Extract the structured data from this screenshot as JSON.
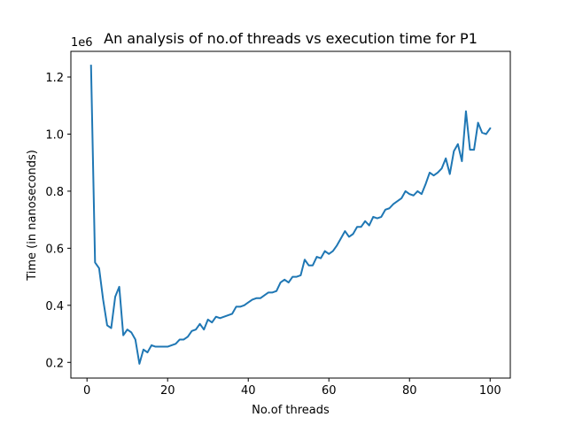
{
  "chart_data": {
    "type": "line",
    "title": "An analysis of no.of threads vs execution time for P1",
    "xlabel": "No.of threads",
    "ylabel": "Time (in nanoseconds)",
    "y_offset_label": "1e6",
    "xlim": [
      -4.0,
      105.0
    ],
    "ylim": [
      0.145,
      1.29
    ],
    "x_ticks": [
      0,
      20,
      40,
      60,
      80,
      100
    ],
    "x_tick_labels": [
      "0",
      "20",
      "40",
      "60",
      "80",
      "100"
    ],
    "y_ticks": [
      0.2,
      0.4,
      0.6,
      0.8,
      1.0,
      1.2
    ],
    "y_tick_labels": [
      "0.2",
      "0.4",
      "0.6",
      "0.8",
      "1.0",
      "1.2"
    ],
    "grid": false,
    "line_color": "#1f77b4",
    "series": [
      {
        "x": [
          1,
          2,
          3,
          4,
          5,
          6,
          7,
          8,
          9,
          10,
          11,
          12,
          13,
          14,
          15,
          16,
          17,
          18,
          19,
          20,
          21,
          22,
          23,
          24,
          25,
          26,
          27,
          28,
          29,
          30,
          31,
          32,
          33,
          34,
          35,
          36,
          37,
          38,
          39,
          40,
          41,
          42,
          43,
          44,
          45,
          46,
          47,
          48,
          49,
          50,
          51,
          52,
          53,
          54,
          55,
          56,
          57,
          58,
          59,
          60,
          61,
          62,
          63,
          64,
          65,
          66,
          67,
          68,
          69,
          70,
          71,
          72,
          73,
          74,
          75,
          76,
          77,
          78,
          79,
          80,
          81,
          82,
          83,
          84,
          85,
          86,
          87,
          88,
          89,
          90,
          91,
          92,
          93,
          94,
          95,
          96,
          97,
          98,
          99,
          100
        ],
        "values": [
          1.24,
          0.55,
          0.53,
          0.42,
          0.33,
          0.32,
          0.43,
          0.465,
          0.295,
          0.315,
          0.305,
          0.28,
          0.195,
          0.245,
          0.235,
          0.26,
          0.255,
          0.255,
          0.255,
          0.255,
          0.26,
          0.265,
          0.28,
          0.28,
          0.29,
          0.31,
          0.315,
          0.335,
          0.315,
          0.35,
          0.34,
          0.36,
          0.355,
          0.36,
          0.365,
          0.37,
          0.395,
          0.395,
          0.4,
          0.41,
          0.42,
          0.425,
          0.425,
          0.435,
          0.445,
          0.445,
          0.45,
          0.48,
          0.49,
          0.48,
          0.5,
          0.5,
          0.505,
          0.56,
          0.54,
          0.54,
          0.57,
          0.565,
          0.59,
          0.58,
          0.59,
          0.61,
          0.635,
          0.66,
          0.64,
          0.65,
          0.675,
          0.675,
          0.695,
          0.68,
          0.71,
          0.705,
          0.71,
          0.735,
          0.74,
          0.755,
          0.765,
          0.775,
          0.8,
          0.79,
          0.785,
          0.8,
          0.79,
          0.825,
          0.865,
          0.855,
          0.865,
          0.88,
          0.915,
          0.86,
          0.94,
          0.965,
          0.905,
          1.08,
          0.945,
          0.945,
          1.04,
          1.005,
          1.0,
          1.02
        ]
      }
    ]
  }
}
